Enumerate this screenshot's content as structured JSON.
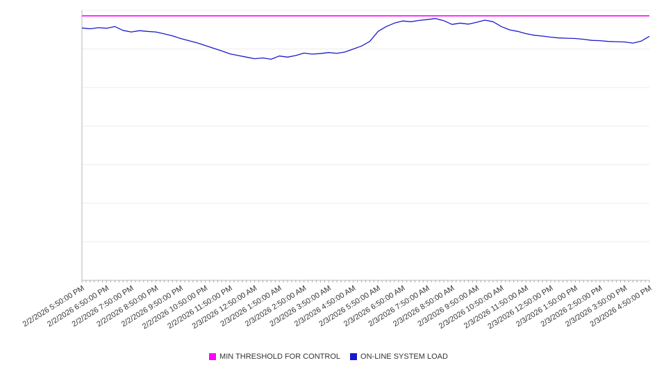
{
  "chart_data": {
    "type": "line",
    "title": "",
    "xlabel": "",
    "ylabel": "",
    "ylim": [
      0,
      100
    ],
    "grid": true,
    "legend_position": "bottom",
    "x_labels": [
      "2/2/2026 5:50:00 PM",
      "2/2/2026 6:50:00 PM",
      "2/2/2026 7:50:00 PM",
      "2/2/2026 8:50:00 PM",
      "2/2/2026 9:50:00 PM",
      "2/2/2026 10:50:00 PM",
      "2/2/2026 11:50:00 PM",
      "2/3/2026 12:50:00 AM",
      "2/3/2026 1:50:00 AM",
      "2/3/2026 2:50:00 AM",
      "2/3/2026 3:50:00 AM",
      "2/3/2026 4:50:00 AM",
      "2/3/2026 5:50:00 AM",
      "2/3/2026 6:50:00 AM",
      "2/3/2026 7:50:00 AM",
      "2/3/2026 8:50:00 AM",
      "2/3/2026 9:50:00 AM",
      "2/3/2026 10:50:00 AM",
      "2/3/2026 11:50:00 AM",
      "2/3/2026 12:50:00 PM",
      "2/3/2026 1:50:00 PM",
      "2/3/2026 2:50:00 PM",
      "2/3/2026 3:50:00 PM",
      "2/3/2026 4:50:00 PM"
    ],
    "series": [
      {
        "name": "MIN THRESHOLD FOR CONTROL",
        "color": "#ff00ff",
        "values": [
          98,
          98
        ]
      },
      {
        "name": "ON-LINE SYSTEM LOAD",
        "color": "#1a1acd",
        "values": [
          93.5,
          93.2,
          93.6,
          93.4,
          94.0,
          92.6,
          92.0,
          92.5,
          92.2,
          92.0,
          91.3,
          90.6,
          89.6,
          88.8,
          88.0,
          87.0,
          86.0,
          85.0,
          83.9,
          83.3,
          82.7,
          82.1,
          82.4,
          81.9,
          83.1,
          82.7,
          83.3,
          84.2,
          83.8,
          84.0,
          84.4,
          84.1,
          84.6,
          85.7,
          86.8,
          88.5,
          92.2,
          94.0,
          95.3,
          96.1,
          95.8,
          96.3,
          96.6,
          97.0,
          96.2,
          94.8,
          95.3,
          94.9,
          95.6,
          96.4,
          95.8,
          94.0,
          92.8,
          92.2,
          91.4,
          90.8,
          90.5,
          90.1,
          89.8,
          89.7,
          89.6,
          89.3,
          88.9,
          88.8,
          88.5,
          88.4,
          88.3,
          87.9,
          88.6,
          90.4
        ]
      }
    ],
    "axis_color": "#b5b5b5",
    "gridline_color": "#ececec",
    "tick_label_color": "#333333"
  }
}
